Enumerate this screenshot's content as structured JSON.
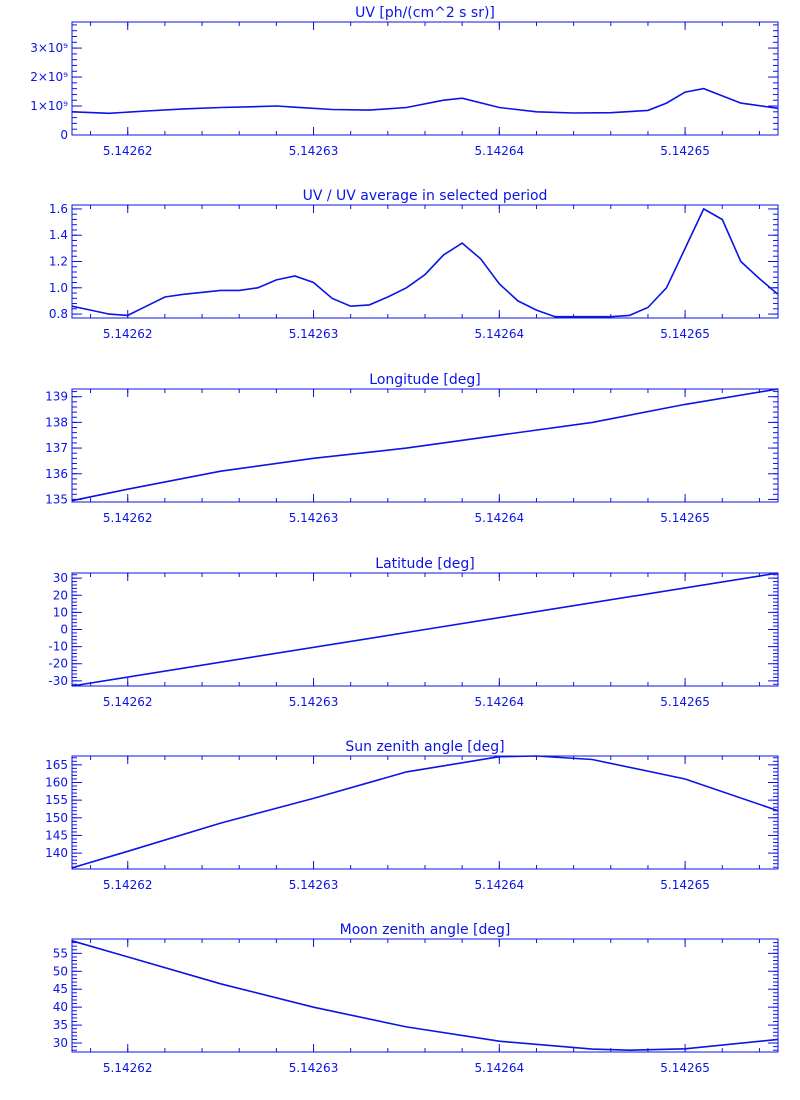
{
  "colors": {
    "plot": "#0a14e6",
    "background": "#ffffff"
  },
  "chart_data": [
    {
      "type": "line",
      "title": "UV [ph/(cm^2 s sr)]",
      "xlim": [
        5.142617,
        5.142655
      ],
      "ylim": [
        0,
        3900000000
      ],
      "x_ticks": [
        5.14262,
        5.14263,
        5.14264,
        5.14265
      ],
      "x_tick_labels": [
        "5.14262",
        "5.14263",
        "5.14264",
        "5.14265"
      ],
      "y_ticks": [
        0,
        1000000000,
        2000000000,
        3000000000
      ],
      "y_tick_labels": [
        "0",
        "1×10⁹",
        "2×10⁹",
        "3×10⁹"
      ],
      "series": [
        {
          "x": [
            5.142617,
            5.142619,
            5.142621,
            5.142623,
            5.142625,
            5.142627,
            5.142628,
            5.142629,
            5.142631,
            5.142633,
            5.142635,
            5.142637,
            5.142638,
            5.14264,
            5.142642,
            5.142644,
            5.142646,
            5.142648,
            5.142649,
            5.14265,
            5.142651,
            5.142652,
            5.142653,
            5.142655
          ],
          "y": [
            800000000,
            750000000,
            830000000,
            900000000,
            950000000,
            980000000,
            1000000000,
            960000000,
            880000000,
            860000000,
            950000000,
            1200000000,
            1270000000,
            950000000,
            800000000,
            760000000,
            770000000,
            850000000,
            1100000000,
            1480000000,
            1600000000,
            1350000000,
            1100000000,
            920000000
          ]
        }
      ]
    },
    {
      "type": "line",
      "title": "UV / UV average in selected period",
      "xlim": [
        5.142617,
        5.142655
      ],
      "ylim": [
        0.77,
        1.63
      ],
      "x_ticks": [
        5.14262,
        5.14263,
        5.14264,
        5.14265
      ],
      "x_tick_labels": [
        "5.14262",
        "5.14263",
        "5.14264",
        "5.14265"
      ],
      "y_ticks": [
        0.8,
        1.0,
        1.2,
        1.4,
        1.6
      ],
      "y_tick_labels": [
        "0.8",
        "1.0",
        "1.2",
        "1.4",
        "1.6"
      ],
      "series": [
        {
          "x": [
            5.142617,
            5.142618,
            5.142619,
            5.14262,
            5.142621,
            5.142622,
            5.142623,
            5.142625,
            5.142626,
            5.142627,
            5.142628,
            5.142629,
            5.14263,
            5.142631,
            5.142632,
            5.142633,
            5.142634,
            5.142635,
            5.142636,
            5.142637,
            5.142638,
            5.142639,
            5.14264,
            5.142641,
            5.142642,
            5.142643,
            5.142644,
            5.142645,
            5.142646,
            5.142647,
            5.142648,
            5.142649,
            5.14265,
            5.142651,
            5.142652,
            5.142653,
            5.142654,
            5.142655
          ],
          "y": [
            0.86,
            0.83,
            0.8,
            0.79,
            0.86,
            0.93,
            0.95,
            0.98,
            0.98,
            1.0,
            1.06,
            1.09,
            1.04,
            0.92,
            0.86,
            0.87,
            0.93,
            1.0,
            1.1,
            1.25,
            1.34,
            1.22,
            1.03,
            0.9,
            0.83,
            0.78,
            0.78,
            0.78,
            0.78,
            0.79,
            0.85,
            1.0,
            1.3,
            1.6,
            1.52,
            1.2,
            1.07,
            0.95
          ]
        }
      ]
    },
    {
      "type": "line",
      "title": "Longitude [deg]",
      "xlim": [
        5.142617,
        5.142655
      ],
      "ylim": [
        134.9,
        139.3
      ],
      "x_ticks": [
        5.14262,
        5.14263,
        5.14264,
        5.14265
      ],
      "x_tick_labels": [
        "5.14262",
        "5.14263",
        "5.14264",
        "5.14265"
      ],
      "y_ticks": [
        135,
        136,
        137,
        138,
        139
      ],
      "y_tick_labels": [
        "135",
        "136",
        "137",
        "138",
        "139"
      ],
      "series": [
        {
          "x": [
            5.142617,
            5.14262,
            5.142625,
            5.14263,
            5.142635,
            5.14264,
            5.142645,
            5.14265,
            5.142655
          ],
          "y": [
            134.95,
            135.4,
            136.1,
            136.6,
            137.0,
            137.5,
            138.0,
            138.7,
            139.3
          ]
        }
      ]
    },
    {
      "type": "line",
      "title": "Latitude [deg]",
      "xlim": [
        5.142617,
        5.142655
      ],
      "ylim": [
        -33,
        33
      ],
      "x_ticks": [
        5.14262,
        5.14263,
        5.14264,
        5.14265
      ],
      "x_tick_labels": [
        "5.14262",
        "5.14263",
        "5.14264",
        "5.14265"
      ],
      "y_ticks": [
        -30,
        -20,
        -10,
        0,
        10,
        20,
        30
      ],
      "y_tick_labels": [
        "-30",
        "-20",
        "-10",
        "0",
        "10",
        "20",
        "30"
      ],
      "series": [
        {
          "x": [
            5.142617,
            5.142636,
            5.142655
          ],
          "y": [
            -33,
            0,
            33
          ]
        }
      ]
    },
    {
      "type": "line",
      "title": "Sun zenith angle [deg]",
      "xlim": [
        5.142617,
        5.142655
      ],
      "ylim": [
        135.5,
        167.5
      ],
      "x_ticks": [
        5.14262,
        5.14263,
        5.14264,
        5.14265
      ],
      "x_tick_labels": [
        "5.14262",
        "5.14263",
        "5.14264",
        "5.14265"
      ],
      "y_ticks": [
        140,
        145,
        150,
        155,
        160,
        165
      ],
      "y_tick_labels": [
        "140",
        "145",
        "150",
        "155",
        "160",
        "165"
      ],
      "series": [
        {
          "x": [
            5.142617,
            5.14262,
            5.142625,
            5.14263,
            5.142635,
            5.14264,
            5.142642,
            5.142645,
            5.14265,
            5.142655
          ],
          "y": [
            135.8,
            140.5,
            148.5,
            155.5,
            163.0,
            167.3,
            167.5,
            166.5,
            161.0,
            152.0
          ]
        }
      ]
    },
    {
      "type": "line",
      "title": "Moon zenith angle [deg]",
      "xlim": [
        5.142617,
        5.142655
      ],
      "ylim": [
        27.5,
        59
      ],
      "x_ticks": [
        5.14262,
        5.14263,
        5.14264,
        5.14265
      ],
      "x_tick_labels": [
        "5.14262",
        "5.14263",
        "5.14264",
        "5.14265"
      ],
      "y_ticks": [
        30,
        35,
        40,
        45,
        50,
        55
      ],
      "y_tick_labels": [
        "30",
        "35",
        "40",
        "45",
        "50",
        "55"
      ],
      "series": [
        {
          "x": [
            5.142617,
            5.14262,
            5.142625,
            5.14263,
            5.142635,
            5.14264,
            5.142645,
            5.142647,
            5.14265,
            5.142655
          ],
          "y": [
            58.5,
            54.0,
            46.5,
            40.0,
            34.5,
            30.5,
            28.3,
            28.0,
            28.4,
            31.0
          ]
        }
      ]
    }
  ]
}
